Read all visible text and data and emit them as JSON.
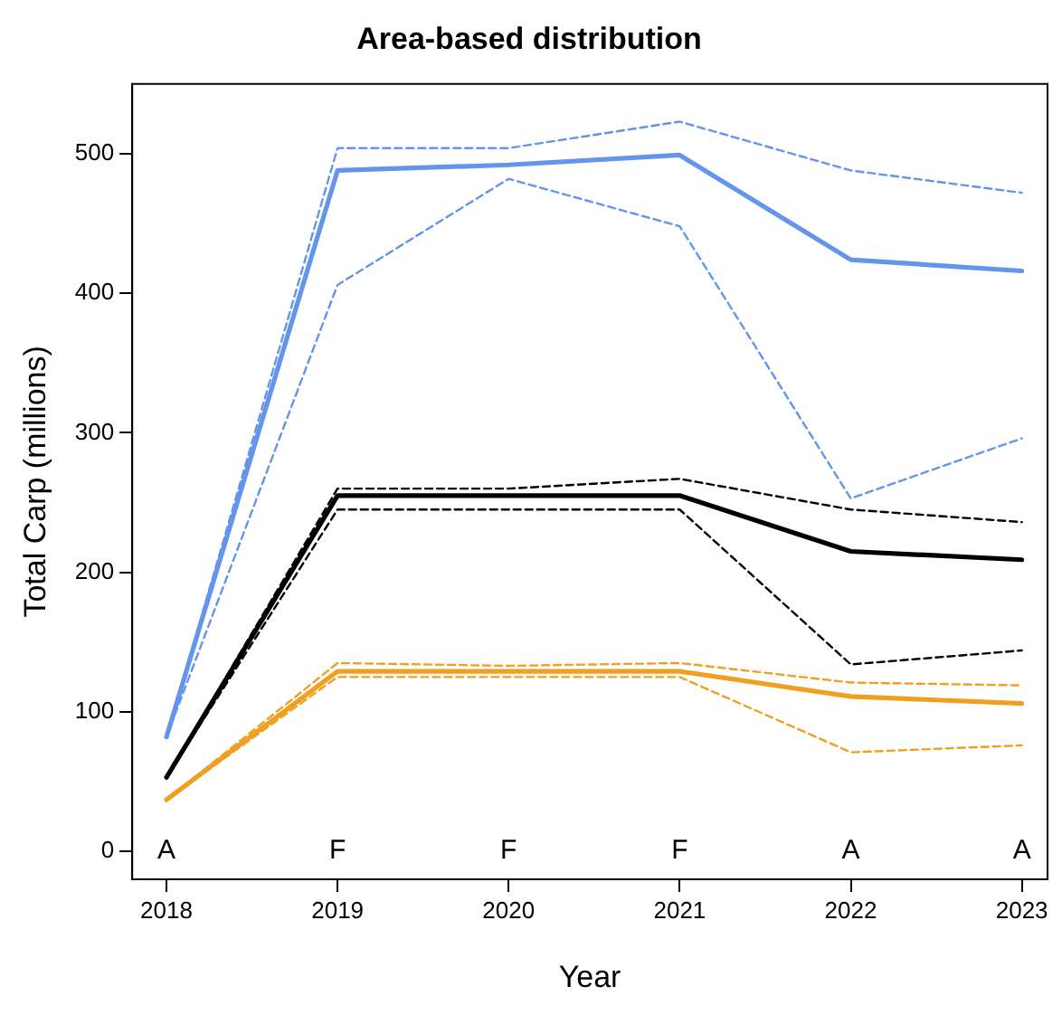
{
  "chart_data": {
    "type": "line",
    "title": "Area-based distribution",
    "xlabel": "Year",
    "ylabel": "Total Carp (millions)",
    "x": [
      2018,
      2019,
      2020,
      2021,
      2022,
      2023
    ],
    "xlim": [
      2017.8,
      2023.15
    ],
    "xticks": [
      2018,
      2019,
      2020,
      2021,
      2022,
      2023
    ],
    "ylim": [
      -20,
      550
    ],
    "yticks": [
      0,
      100,
      200,
      300,
      400,
      500
    ],
    "grid": false,
    "legend": false,
    "marker": "none",
    "series": [
      {
        "color": "#6495ed",
        "line_style": "solid",
        "values": [
          82,
          488,
          492,
          499,
          424,
          416
        ]
      },
      {
        "color": "#6495ed",
        "line_style": "dashed",
        "values": [
          82,
          504,
          504,
          523,
          488,
          472
        ]
      },
      {
        "color": "#6495ed",
        "line_style": "dashed",
        "values": [
          82,
          406,
          482,
          448,
          253,
          296
        ]
      },
      {
        "color": "#000000",
        "line_style": "solid",
        "values": [
          53,
          255,
          255,
          255,
          215,
          209
        ]
      },
      {
        "color": "#000000",
        "line_style": "dashed",
        "values": [
          53,
          260,
          260,
          267,
          245,
          236
        ]
      },
      {
        "color": "#000000",
        "line_style": "dashed",
        "values": [
          53,
          245,
          245,
          245,
          134,
          144
        ]
      },
      {
        "color": "#f0a020",
        "line_style": "solid",
        "values": [
          37,
          129,
          129,
          129,
          111,
          106
        ]
      },
      {
        "color": "#f0a020",
        "line_style": "dashed",
        "values": [
          37,
          135,
          133,
          135,
          121,
          119
        ]
      },
      {
        "color": "#f0a020",
        "line_style": "dashed",
        "values": [
          37,
          125,
          125,
          125,
          71,
          76
        ]
      }
    ],
    "annotations": [
      "A",
      "F",
      "F",
      "F",
      "A",
      "A"
    ]
  }
}
